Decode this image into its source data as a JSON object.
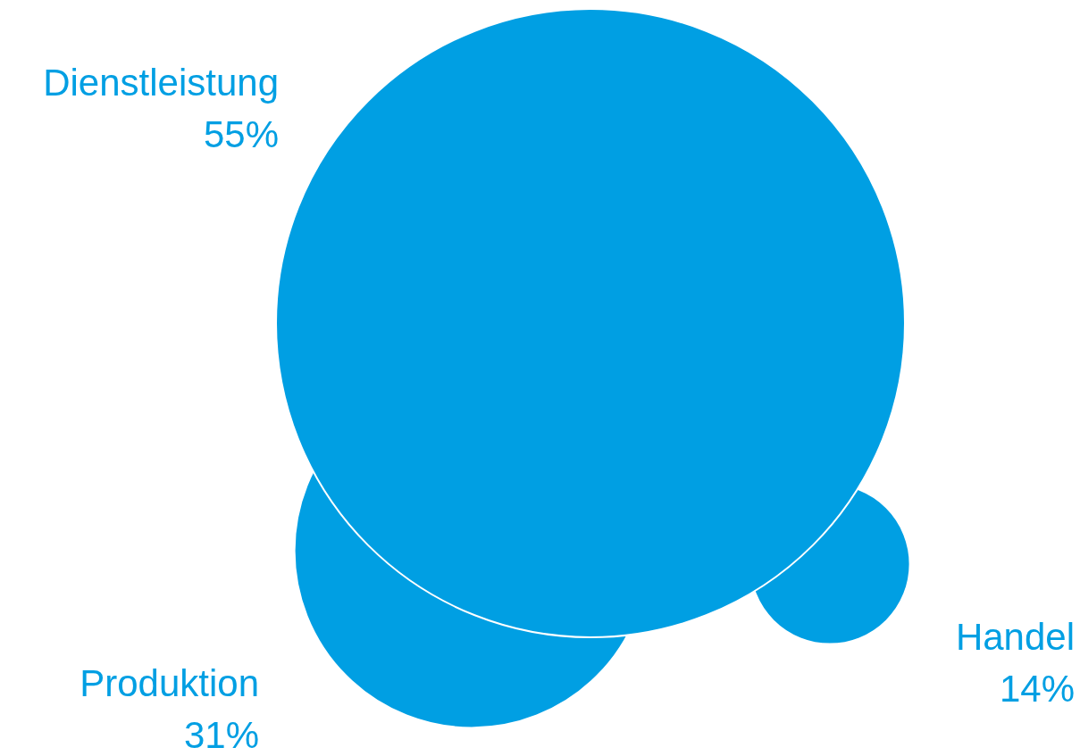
{
  "chart_data": {
    "type": "other",
    "categories": [
      "Dienstleistung",
      "Produktion",
      "Handel"
    ],
    "values": [
      55,
      31,
      14
    ],
    "value_labels": [
      "55%",
      "31%",
      "14%"
    ],
    "colors": [
      "#009fe3",
      "#009fe3",
      "#009fe3"
    ]
  }
}
